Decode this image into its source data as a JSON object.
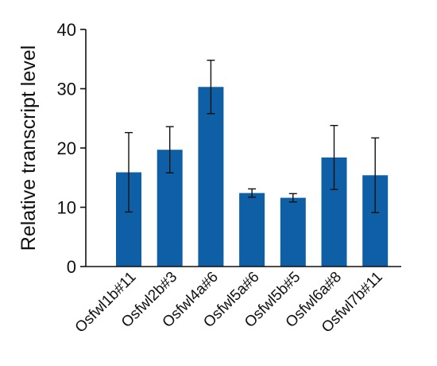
{
  "chart_data": {
    "type": "bar",
    "title": "",
    "xlabel": "",
    "ylabel": "Relative transcript level",
    "ylim": [
      0,
      40
    ],
    "yticks": [
      0,
      10,
      20,
      30,
      40
    ],
    "grid": false,
    "categories": [
      "Osfwl1b#11",
      "Osfwl2b#3",
      "Osfwl4a#6",
      "Osfwl5a#6",
      "Osfwl5b#5",
      "Osfwl6a#8",
      "Osfwl7b#11"
    ],
    "values": [
      15.9,
      19.7,
      30.3,
      12.4,
      11.6,
      18.4,
      15.4
    ],
    "errors": [
      6.7,
      3.9,
      4.5,
      0.7,
      0.7,
      5.4,
      6.3
    ],
    "bar_color": "#0f5fa6",
    "axis_color": "#111111"
  }
}
